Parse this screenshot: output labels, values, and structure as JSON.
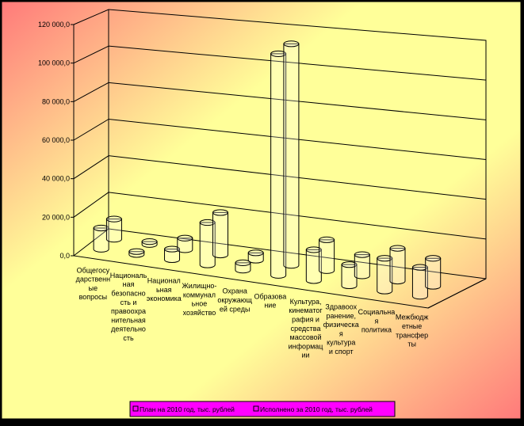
{
  "chart_data": {
    "type": "bar",
    "style": "3d-cylinder",
    "categories": [
      [
        "Общегосу",
        "дарственн",
        "ые",
        "вопросы"
      ],
      [
        "Националь",
        "ная",
        "безопасно",
        "сть и",
        "правоохра",
        "нительная",
        "деятельно",
        "сть"
      ],
      [
        "Национал",
        "ьная",
        "экономика"
      ],
      [
        "Жилищно-",
        "коммунал",
        "ьное",
        "хозяйство"
      ],
      [
        "Охрана",
        "окружающ",
        "ей среды"
      ],
      [
        "Образова",
        "ние"
      ],
      [
        "Культура,",
        "кинематог",
        "рафия и",
        "средства",
        "массовой",
        "информац",
        "ии"
      ],
      [
        "Здравоох",
        "ранение,",
        "физическа",
        "я",
        "культура",
        "и спорт"
      ],
      [
        "Социальна",
        "я",
        "политика"
      ],
      [
        "Межбюдж",
        "етные",
        "трансфер",
        "ты"
      ]
    ],
    "series": [
      {
        "name": "План на 2010 год, тыс. рублей",
        "values": [
          11000,
          1500,
          5500,
          22000,
          3800,
          115000,
          16000,
          11000,
          17000,
          15000
        ]
      },
      {
        "name": "Исполнено за 2010 год, тыс. рублей",
        "values": [
          10500,
          1500,
          6000,
          22000,
          3800,
          115000,
          16000,
          11000,
          17000,
          14500
        ]
      }
    ],
    "y_ticks": [
      "0,0",
      "20 000,0",
      "40 000,0",
      "60 000,0",
      "80 000,0",
      "100 000,0",
      "120 000,0"
    ],
    "ylim": [
      0,
      120000
    ],
    "grid": true,
    "legend_position": "bottom"
  },
  "colors": {
    "background_yellow": "#ffff99",
    "background_pink": "#ff7878",
    "legend_fill": "#ff00ff",
    "grid": "#000000",
    "cylinder": "#ffffff"
  }
}
